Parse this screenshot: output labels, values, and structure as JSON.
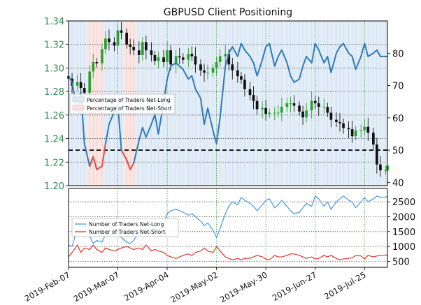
{
  "chart_data": [
    {
      "type": "line",
      "title": "GBPUSD Client Positioning",
      "xlabel": "",
      "ylabel": "",
      "price_axis": {
        "ylim": [
          1.2,
          1.34
        ],
        "ticks": [
          1.2,
          1.22,
          1.24,
          1.26,
          1.28,
          1.3,
          1.32,
          1.34
        ],
        "tick_labels": [
          "1.20",
          "1.22",
          "1.24",
          "1.26",
          "1.28",
          "1.30",
          "1.32",
          "1.34"
        ],
        "color": "#2e8b57"
      },
      "pct_axis": {
        "ylim": [
          39,
          90
        ],
        "ticks": [
          40,
          50,
          60,
          70,
          80
        ],
        "tick_labels": [
          "40",
          "50",
          "60",
          "70",
          "80"
        ]
      },
      "x_ticks": [
        "2019-Feb-07",
        "2019-Mar-07",
        "2019-Apr-04",
        "2019-May-02",
        "2019-May-30",
        "2019-Jun-27",
        "2019-Jul-25"
      ],
      "x_tick_dates": [
        "2019-02-07",
        "2019-03-07",
        "2019-04-04",
        "2019-05-02",
        "2019-05-30",
        "2019-06-27",
        "2019-07-25"
      ],
      "date_range": [
        "2019-02-07",
        "2019-08-07"
      ],
      "reference_line": 50,
      "grid": true,
      "legend": {
        "position": "center-left",
        "entries": [
          "Percentage of Traders Net-Long",
          "Percentage of Traders Net-Short"
        ]
      },
      "colors": {
        "net_long": "#2f7ab9",
        "net_short": "#e0574f",
        "candle_up": "#2ca02c",
        "candle_down": "#111111",
        "net_long_fill": "#dce9f5",
        "net_short_fill": "#f9dedc"
      },
      "series": [
        {
          "name": "Percentage of Traders Net-Long",
          "dates": [
            "2019-02-07",
            "2019-02-09",
            "2019-02-12",
            "2019-02-14",
            "2019-02-16",
            "2019-02-19",
            "2019-02-21",
            "2019-02-23",
            "2019-02-26",
            "2019-02-28",
            "2019-03-02",
            "2019-03-05",
            "2019-03-07",
            "2019-03-09",
            "2019-03-12",
            "2019-03-14",
            "2019-03-16",
            "2019-03-19",
            "2019-03-21",
            "2019-03-23",
            "2019-03-26",
            "2019-03-28",
            "2019-03-30",
            "2019-04-02",
            "2019-04-04",
            "2019-04-06",
            "2019-04-09",
            "2019-04-11",
            "2019-04-13",
            "2019-04-16",
            "2019-04-18",
            "2019-04-20",
            "2019-04-23",
            "2019-04-25",
            "2019-04-27",
            "2019-04-30",
            "2019-05-02",
            "2019-05-04",
            "2019-05-07",
            "2019-05-09",
            "2019-05-11",
            "2019-05-14",
            "2019-05-16",
            "2019-05-18",
            "2019-05-21",
            "2019-05-23",
            "2019-05-25",
            "2019-05-28",
            "2019-05-30",
            "2019-06-01",
            "2019-06-04",
            "2019-06-06",
            "2019-06-08",
            "2019-06-11",
            "2019-06-13",
            "2019-06-15",
            "2019-06-18",
            "2019-06-20",
            "2019-06-22",
            "2019-06-25",
            "2019-06-27",
            "2019-06-29",
            "2019-07-02",
            "2019-07-04",
            "2019-07-06",
            "2019-07-09",
            "2019-07-11",
            "2019-07-13",
            "2019-07-16",
            "2019-07-18",
            "2019-07-20",
            "2019-07-23",
            "2019-07-25",
            "2019-07-27",
            "2019-07-30",
            "2019-08-01",
            "2019-08-03",
            "2019-08-06",
            "2019-08-07"
          ],
          "values": [
            73,
            71,
            62,
            68,
            52,
            45,
            48,
            44,
            45,
            52,
            58,
            62,
            64,
            50,
            47,
            44,
            46,
            53,
            57,
            54,
            58,
            61,
            55,
            65,
            72,
            76,
            77,
            76,
            75,
            72,
            73,
            69,
            66,
            58,
            63,
            56,
            52,
            60,
            76,
            80,
            82,
            79,
            83,
            81,
            79,
            77,
            73,
            78,
            82,
            83,
            76,
            79,
            81,
            77,
            73,
            71,
            72,
            76,
            79,
            77,
            83,
            81,
            77,
            79,
            74,
            80,
            82,
            83,
            80,
            79,
            75,
            79,
            83,
            79,
            80,
            81,
            79,
            79,
            79
          ],
          "line_color": "#2f7ab9"
        },
        {
          "name": "Percentage of Traders Net-Short",
          "segments": [
            {
              "dates": [
                "2019-02-19",
                "2019-02-21",
                "2019-02-23",
                "2019-02-26",
                "2019-02-28"
              ],
              "values": [
                45,
                48,
                44,
                45,
                52
              ]
            },
            {
              "dates": [
                "2019-03-09",
                "2019-03-12",
                "2019-03-14",
                "2019-03-16"
              ],
              "values": [
                50,
                47,
                44,
                46
              ]
            }
          ],
          "line_color": "#e0574f"
        }
      ],
      "price_series": {
        "name": "GBPUSD",
        "dates": [
          "2019-02-07",
          "2019-02-09",
          "2019-02-12",
          "2019-02-14",
          "2019-02-16",
          "2019-02-19",
          "2019-02-21",
          "2019-02-23",
          "2019-02-26",
          "2019-02-28",
          "2019-03-02",
          "2019-03-05",
          "2019-03-07",
          "2019-03-09",
          "2019-03-12",
          "2019-03-14",
          "2019-03-16",
          "2019-03-19",
          "2019-03-21",
          "2019-03-23",
          "2019-03-26",
          "2019-03-28",
          "2019-03-30",
          "2019-04-02",
          "2019-04-04",
          "2019-04-06",
          "2019-04-09",
          "2019-04-11",
          "2019-04-13",
          "2019-04-16",
          "2019-04-18",
          "2019-04-20",
          "2019-04-23",
          "2019-04-25",
          "2019-04-27",
          "2019-04-30",
          "2019-05-02",
          "2019-05-04",
          "2019-05-07",
          "2019-05-09",
          "2019-05-11",
          "2019-05-14",
          "2019-05-16",
          "2019-05-18",
          "2019-05-21",
          "2019-05-23",
          "2019-05-25",
          "2019-05-28",
          "2019-05-30",
          "2019-06-01",
          "2019-06-04",
          "2019-06-06",
          "2019-06-08",
          "2019-06-11",
          "2019-06-13",
          "2019-06-15",
          "2019-06-18",
          "2019-06-20",
          "2019-06-22",
          "2019-06-25",
          "2019-06-27",
          "2019-06-29",
          "2019-07-02",
          "2019-07-04",
          "2019-07-06",
          "2019-07-09",
          "2019-07-11",
          "2019-07-13",
          "2019-07-16",
          "2019-07-18",
          "2019-07-20",
          "2019-07-23",
          "2019-07-25",
          "2019-07-27",
          "2019-07-30",
          "2019-08-01",
          "2019-08-03",
          "2019-08-06",
          "2019-08-07"
        ],
        "close": [
          1.291,
          1.285,
          1.288,
          1.283,
          1.279,
          1.297,
          1.305,
          1.304,
          1.316,
          1.325,
          1.322,
          1.319,
          1.332,
          1.33,
          1.32,
          1.318,
          1.315,
          1.311,
          1.322,
          1.315,
          1.311,
          1.306,
          1.309,
          1.305,
          1.315,
          1.303,
          1.31,
          1.309,
          1.307,
          1.312,
          1.31,
          1.303,
          1.298,
          1.296,
          1.296,
          1.3,
          1.305,
          1.31,
          1.312,
          1.303,
          1.298,
          1.293,
          1.29,
          1.282,
          1.277,
          1.272,
          1.265,
          1.266,
          1.261,
          1.262,
          1.262,
          1.262,
          1.267,
          1.27,
          1.27,
          1.268,
          1.263,
          1.258,
          1.264,
          1.272,
          1.27,
          1.267,
          1.267,
          1.262,
          1.256,
          1.254,
          1.253,
          1.249,
          1.248,
          1.242,
          1.247,
          1.247,
          1.25,
          1.245,
          1.235,
          1.218,
          1.213,
          1.213,
          1.217
        ]
      }
    },
    {
      "type": "line",
      "title": "",
      "ylim": [
        300,
        2950
      ],
      "y_ticks": [
        500,
        1000,
        1500,
        2000,
        2500
      ],
      "y_tick_labels": [
        "500",
        "1000",
        "1500",
        "2000",
        "2500"
      ],
      "grid": true,
      "legend": {
        "position": "center-left",
        "entries": [
          "Number of Traders Net-Long",
          "Number of Traders Net-Short"
        ]
      },
      "series": [
        {
          "name": "Number of Traders Net-Long",
          "values": [
            1050,
            1000,
            1600,
            1450,
            1700,
            1350,
            1100,
            1200,
            1150,
            1400,
            1500,
            1600,
            1550,
            1300,
            1150,
            1100,
            1200,
            1500,
            1600,
            1450,
            1550,
            1700,
            1500,
            1800,
            2100,
            2200,
            2250,
            2200,
            2150,
            2050,
            2100,
            2000,
            1850,
            1700,
            1800,
            1550,
            1300,
            1600,
            2100,
            2350,
            2500,
            2400,
            2650,
            2550,
            2450,
            2350,
            2200,
            2400,
            2550,
            2600,
            2300,
            2400,
            2550,
            2350,
            2200,
            2100,
            2150,
            2300,
            2450,
            2350,
            2700,
            2600,
            2350,
            2500,
            2250,
            2500,
            2600,
            2700,
            2550,
            2500,
            2300,
            2500,
            2650,
            2500,
            2600,
            2700,
            2650,
            2650,
            2700
          ],
          "line_color": "#4a97dc"
        },
        {
          "name": "Number of Traders Net-Short",
          "values": [
            650,
            800,
            1050,
            800,
            950,
            900,
            1050,
            900,
            800,
            950,
            900,
            850,
            900,
            950,
            1000,
            950,
            900,
            950,
            900,
            1050,
            850,
            900,
            850,
            800,
            700,
            650,
            600,
            650,
            700,
            750,
            700,
            800,
            850,
            950,
            850,
            800,
            1000,
            850,
            650,
            600,
            550,
            600,
            550,
            600,
            600,
            650,
            700,
            650,
            580,
            550,
            700,
            650,
            650,
            700,
            750,
            750,
            700,
            650,
            600,
            650,
            580,
            600,
            700,
            650,
            700,
            600,
            550,
            580,
            600,
            620,
            700,
            680,
            580,
            700,
            650,
            680,
            700,
            700,
            730
          ],
          "line_color": "#e0362a"
        }
      ]
    }
  ]
}
